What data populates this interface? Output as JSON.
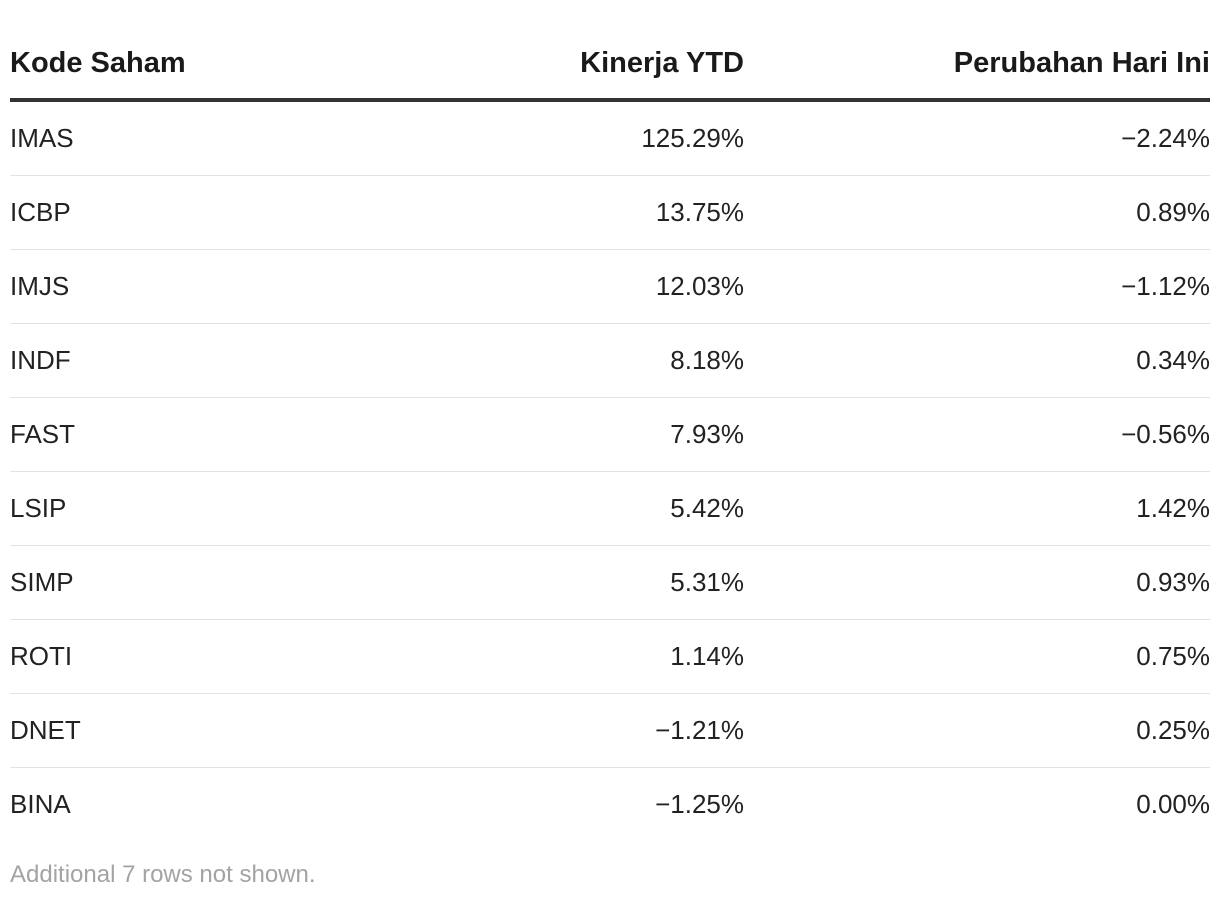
{
  "table": {
    "headers": {
      "code": "Kode Saham",
      "ytd": "Kinerja YTD",
      "today": "Perubahan Hari Ini"
    },
    "rows": [
      {
        "code": "IMAS",
        "ytd": "125.29%",
        "today": "−2.24%"
      },
      {
        "code": "ICBP",
        "ytd": "13.75%",
        "today": "0.89%"
      },
      {
        "code": "IMJS",
        "ytd": "12.03%",
        "today": "−1.12%"
      },
      {
        "code": "INDF",
        "ytd": "8.18%",
        "today": "0.34%"
      },
      {
        "code": "FAST",
        "ytd": "7.93%",
        "today": "−0.56%"
      },
      {
        "code": "LSIP",
        "ytd": "5.42%",
        "today": "1.42%"
      },
      {
        "code": "SIMP",
        "ytd": "5.31%",
        "today": "0.93%"
      },
      {
        "code": "ROTI",
        "ytd": "1.14%",
        "today": "0.75%"
      },
      {
        "code": "DNET",
        "ytd": "−1.21%",
        "today": "0.25%"
      },
      {
        "code": "BINA",
        "ytd": "−1.25%",
        "today": "0.00%"
      }
    ]
  },
  "footnote": "Additional 7 rows not shown."
}
